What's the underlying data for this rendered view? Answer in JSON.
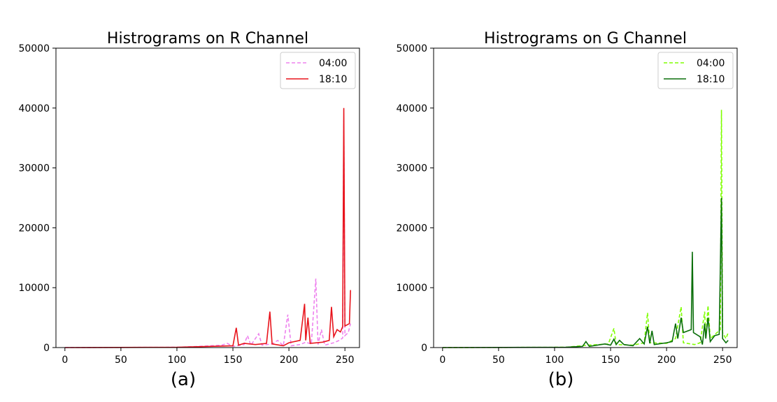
{
  "chart_data": [
    {
      "type": "line",
      "title": "Histrograms on R Channel",
      "caption": "(a)",
      "xlim": [
        -8,
        263
      ],
      "ylim": [
        0,
        50000
      ],
      "xticks": [
        0,
        50,
        100,
        150,
        200,
        250
      ],
      "yticks": [
        0,
        10000,
        20000,
        30000,
        40000,
        50000
      ],
      "grid": false,
      "legend": "top-right",
      "series": [
        {
          "name": "04:00",
          "color": "#ee82ee",
          "dash": true,
          "points": [
            [
              0,
              0
            ],
            [
              100,
              50
            ],
            [
              120,
              200
            ],
            [
              140,
              400
            ],
            [
              145,
              700
            ],
            [
              150,
              200
            ],
            [
              160,
              500
            ],
            [
              163,
              2000
            ],
            [
              166,
              400
            ],
            [
              173,
              2300
            ],
            [
              176,
              400
            ],
            [
              185,
              600
            ],
            [
              190,
              1200
            ],
            [
              195,
              300
            ],
            [
              199,
              5500
            ],
            [
              202,
              300
            ],
            [
              210,
              500
            ],
            [
              215,
              900
            ],
            [
              220,
              600
            ],
            [
              224,
              11500
            ],
            [
              226,
              500
            ],
            [
              229,
              3000
            ],
            [
              232,
              400
            ],
            [
              240,
              800
            ],
            [
              245,
              1200
            ],
            [
              248,
              1600
            ],
            [
              249,
              38000
            ],
            [
              250,
              2000
            ],
            [
              253,
              2500
            ],
            [
              255,
              4000
            ]
          ]
        },
        {
          "name": "18:10",
          "color": "#e8141c",
          "dash": false,
          "points": [
            [
              0,
              0
            ],
            [
              100,
              50
            ],
            [
              130,
              200
            ],
            [
              150,
              300
            ],
            [
              153,
              3300
            ],
            [
              155,
              400
            ],
            [
              160,
              700
            ],
            [
              170,
              500
            ],
            [
              180,
              700
            ],
            [
              183,
              6000
            ],
            [
              185,
              600
            ],
            [
              195,
              300
            ],
            [
              200,
              800
            ],
            [
              210,
              1200
            ],
            [
              214,
              7300
            ],
            [
              215,
              1200
            ],
            [
              217,
              5000
            ],
            [
              219,
              700
            ],
            [
              230,
              900
            ],
            [
              236,
              1200
            ],
            [
              238,
              6800
            ],
            [
              240,
              1800
            ],
            [
              243,
              3000
            ],
            [
              246,
              2600
            ],
            [
              248,
              3500
            ],
            [
              249,
              40000
            ],
            [
              250,
              3600
            ],
            [
              254,
              4000
            ],
            [
              255,
              9600
            ]
          ]
        }
      ]
    },
    {
      "type": "line",
      "title": "Histrograms on G Channel",
      "caption": "(b)",
      "xlim": [
        -8,
        263
      ],
      "ylim": [
        0,
        50000
      ],
      "xticks": [
        0,
        50,
        100,
        150,
        200,
        250
      ],
      "yticks": [
        0,
        10000,
        20000,
        30000,
        40000,
        50000
      ],
      "grid": false,
      "legend": "top-right",
      "series": [
        {
          "name": "04:00",
          "color": "#7fff00",
          "dash": true,
          "points": [
            [
              0,
              0
            ],
            [
              110,
              50
            ],
            [
              130,
              400
            ],
            [
              148,
              600
            ],
            [
              153,
              3200
            ],
            [
              155,
              500
            ],
            [
              170,
              400
            ],
            [
              180,
              800
            ],
            [
              183,
              5800
            ],
            [
              185,
              800
            ],
            [
              200,
              700
            ],
            [
              208,
              1500
            ],
            [
              213,
              6800
            ],
            [
              215,
              800
            ],
            [
              225,
              500
            ],
            [
              230,
              800
            ],
            [
              234,
              6000
            ],
            [
              235,
              1500
            ],
            [
              237,
              7000
            ],
            [
              239,
              1500
            ],
            [
              245,
              2500
            ],
            [
              248,
              3000
            ],
            [
              249,
              39700
            ],
            [
              250,
              2500
            ],
            [
              253,
              1500
            ],
            [
              255,
              2500
            ]
          ]
        },
        {
          "name": "18:10",
          "color": "#0a6e0a",
          "dash": false,
          "points": [
            [
              0,
              0
            ],
            [
              110,
              50
            ],
            [
              125,
              200
            ],
            [
              128,
              1000
            ],
            [
              131,
              200
            ],
            [
              145,
              600
            ],
            [
              150,
              400
            ],
            [
              153,
              1400
            ],
            [
              155,
              500
            ],
            [
              158,
              1200
            ],
            [
              162,
              500
            ],
            [
              170,
              300
            ],
            [
              176,
              1500
            ],
            [
              180,
              600
            ],
            [
              183,
              3500
            ],
            [
              185,
              700
            ],
            [
              187,
              2800
            ],
            [
              189,
              500
            ],
            [
              200,
              800
            ],
            [
              205,
              1000
            ],
            [
              208,
              4000
            ],
            [
              210,
              1500
            ],
            [
              213,
              5000
            ],
            [
              215,
              2500
            ],
            [
              222,
              3000
            ],
            [
              223,
              16000
            ],
            [
              224,
              2500
            ],
            [
              230,
              1800
            ],
            [
              232,
              500
            ],
            [
              234,
              4000
            ],
            [
              235,
              1500
            ],
            [
              237,
              5000
            ],
            [
              239,
              1000
            ],
            [
              243,
              2000
            ],
            [
              247,
              2200
            ],
            [
              249,
              25000
            ],
            [
              250,
              1500
            ],
            [
              253,
              800
            ],
            [
              255,
              1200
            ]
          ]
        }
      ]
    }
  ]
}
